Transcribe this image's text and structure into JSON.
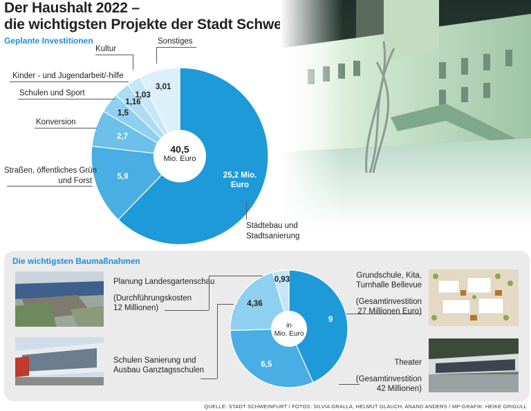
{
  "header": {
    "title_line1": "Der Haushalt 2022 –",
    "title_line2": "die wichtigsten Projekte der Stadt Schweinfurt",
    "subtitle": "Geplante Investitionen"
  },
  "chart_data": [
    {
      "type": "pie",
      "title": "Geplante Investitionen",
      "center_value": "40,5",
      "center_unit": "Mio. Euro",
      "slices": [
        {
          "label": "Städtebau und Stadtsanierung",
          "value": 25.2,
          "value_label": "25,2 Mio.",
          "value_label2": "Euro",
          "color": "#1e9ad9"
        },
        {
          "label": "Straßen, öffentliches Grün und Forst",
          "value": 5.9,
          "value_label": "5,9",
          "color": "#48aee4"
        },
        {
          "label": "Konversion",
          "value": 2.7,
          "value_label": "2,7",
          "color": "#6cc0ea"
        },
        {
          "label": "Schulen und Sport",
          "value": 1.5,
          "value_label": "1,5",
          "color": "#8fd0f0"
        },
        {
          "label": "Kinder - und Jugendarbeit/-hilfe",
          "value": 1.16,
          "value_label": "1,16",
          "color": "#aedcf3"
        },
        {
          "label": "Kultur",
          "value": 1.03,
          "value_label": "1,03",
          "color": "#c5e6f6"
        },
        {
          "label": "Sonstiges",
          "value": 3.01,
          "value_label": "3,01",
          "color": "#dcf0fa"
        }
      ]
    },
    {
      "type": "pie",
      "title": "Die wichtigsten Baumaßnahmen",
      "center_value": "in",
      "center_unit": "Mio. Euro",
      "slices": [
        {
          "label": "Grundschule, Kita, Turnhalle Bellevue",
          "value": 9,
          "value_label": "9",
          "color": "#1e9ad9"
        },
        {
          "label": "Theater",
          "value": 6.5,
          "value_label": "6,5",
          "color": "#48aee4"
        },
        {
          "label": "Schulen Sanierung und Ausbau Ganztagsschulen",
          "value": 4.36,
          "value_label": "4,36",
          "color": "#8fd0f0"
        },
        {
          "label": "Planung Landesgartenschau",
          "value": 0.93,
          "value_label": "0,93",
          "color": "#c5e6f6"
        }
      ]
    }
  ],
  "labels": {
    "kultur": "Kultur",
    "sonstiges": "Sonstiges",
    "kinder": "Kinder - und Jugendarbeit/-hilfe",
    "schulen": "Schulen und Sport",
    "konversion": "Konversion",
    "strassen1": "Straßen, öffentliches Grün",
    "strassen2": "und Forst",
    "staedtebau1": "Städtebau und",
    "staedtebau2": "Stadtsanierung"
  },
  "projects": {
    "panel_title": "Die wichtigsten Baumaßnahmen",
    "lgs_title": "Planung Landesgartenschau",
    "lgs_note1": "(Durchführungskosten",
    "lgs_note2": "12 Millionen)",
    "schulen1": "Schulen Sanierung und",
    "schulen2": "Ausbau Ganztagsschulen",
    "bellevue1": "Grundschule, Kita,",
    "bellevue2": "Turnhalle Bellevue",
    "bellevue_note1": "(Gesamtinvestition",
    "bellevue_note2": "27 Millionen Euro)",
    "theater": "Theater",
    "theater_note1": "(Gesamtinvestition",
    "theater_note2": "42 Millionen)"
  },
  "footer": "QUELLE: STADT SCHWEINFURT / FOTOS: SILVIA GRALLA, HELMUT GLAUCH, ANAND ANDERS / MP-GRAFIK: HEIKE GRIGULL"
}
